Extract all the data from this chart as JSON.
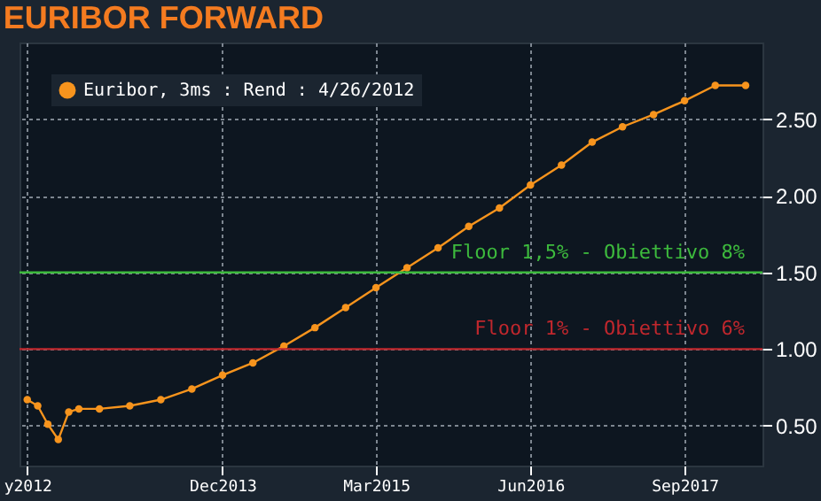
{
  "chart_data": {
    "type": "line",
    "title": "EURIBOR FORWARD",
    "x": [
      "2012-05",
      "2012-06",
      "2012-07",
      "2012-08",
      "2012-09",
      "2012-10",
      "2012-12",
      "2013-03",
      "2013-06",
      "2013-09",
      "2013-12",
      "2014-03",
      "2014-06",
      "2014-09",
      "2014-12",
      "2015-03",
      "2015-06",
      "2015-09",
      "2015-12",
      "2016-03",
      "2016-06",
      "2016-09",
      "2016-12",
      "2017-03",
      "2017-06",
      "2017-09",
      "2017-12",
      "2018-03"
    ],
    "series": [
      {
        "name": "Euribor, 3ms : Rend : 4/26/2012",
        "color": "#f7941d",
        "values": [
          0.67,
          0.63,
          0.51,
          0.41,
          0.59,
          0.61,
          0.61,
          0.63,
          0.67,
          0.74,
          0.83,
          0.91,
          1.02,
          1.14,
          1.27,
          1.4,
          1.53,
          1.66,
          1.8,
          1.92,
          2.07,
          2.2,
          2.35,
          2.45,
          2.53,
          2.62,
          2.72,
          2.72
        ]
      }
    ],
    "xlim": [
      "2012-04-08",
      "2018-04-20"
    ],
    "xticks": [
      {
        "value": "2012-05",
        "label": "y2012"
      },
      {
        "value": "2013-12",
        "label": "Dec2013"
      },
      {
        "value": "2015-03",
        "label": "Mar2015"
      },
      {
        "value": "2016-06",
        "label": "Jun2016"
      },
      {
        "value": "2017-09",
        "label": "Sep2017"
      }
    ],
    "ylim": [
      0.24,
      3.0
    ],
    "yticks": [
      {
        "value": 0.5,
        "label": "0.50"
      },
      {
        "value": 1.0,
        "label": "1.00"
      },
      {
        "value": 1.5,
        "label": "1.50"
      },
      {
        "value": 2.0,
        "label": "2.00"
      },
      {
        "value": 2.5,
        "label": "2.50"
      }
    ],
    "ref_lines": [
      {
        "axis": "y",
        "value": 1.5,
        "color": "#3dba3d",
        "label": "Floor 1,5% - Obiettivo 8%"
      },
      {
        "axis": "y",
        "value": 1.0,
        "color": "#c0272d",
        "label": "Floor 1% - Obiettivo 6%"
      }
    ],
    "grid": true,
    "legend": "top left",
    "marker": "circle",
    "line_style": "solid"
  }
}
